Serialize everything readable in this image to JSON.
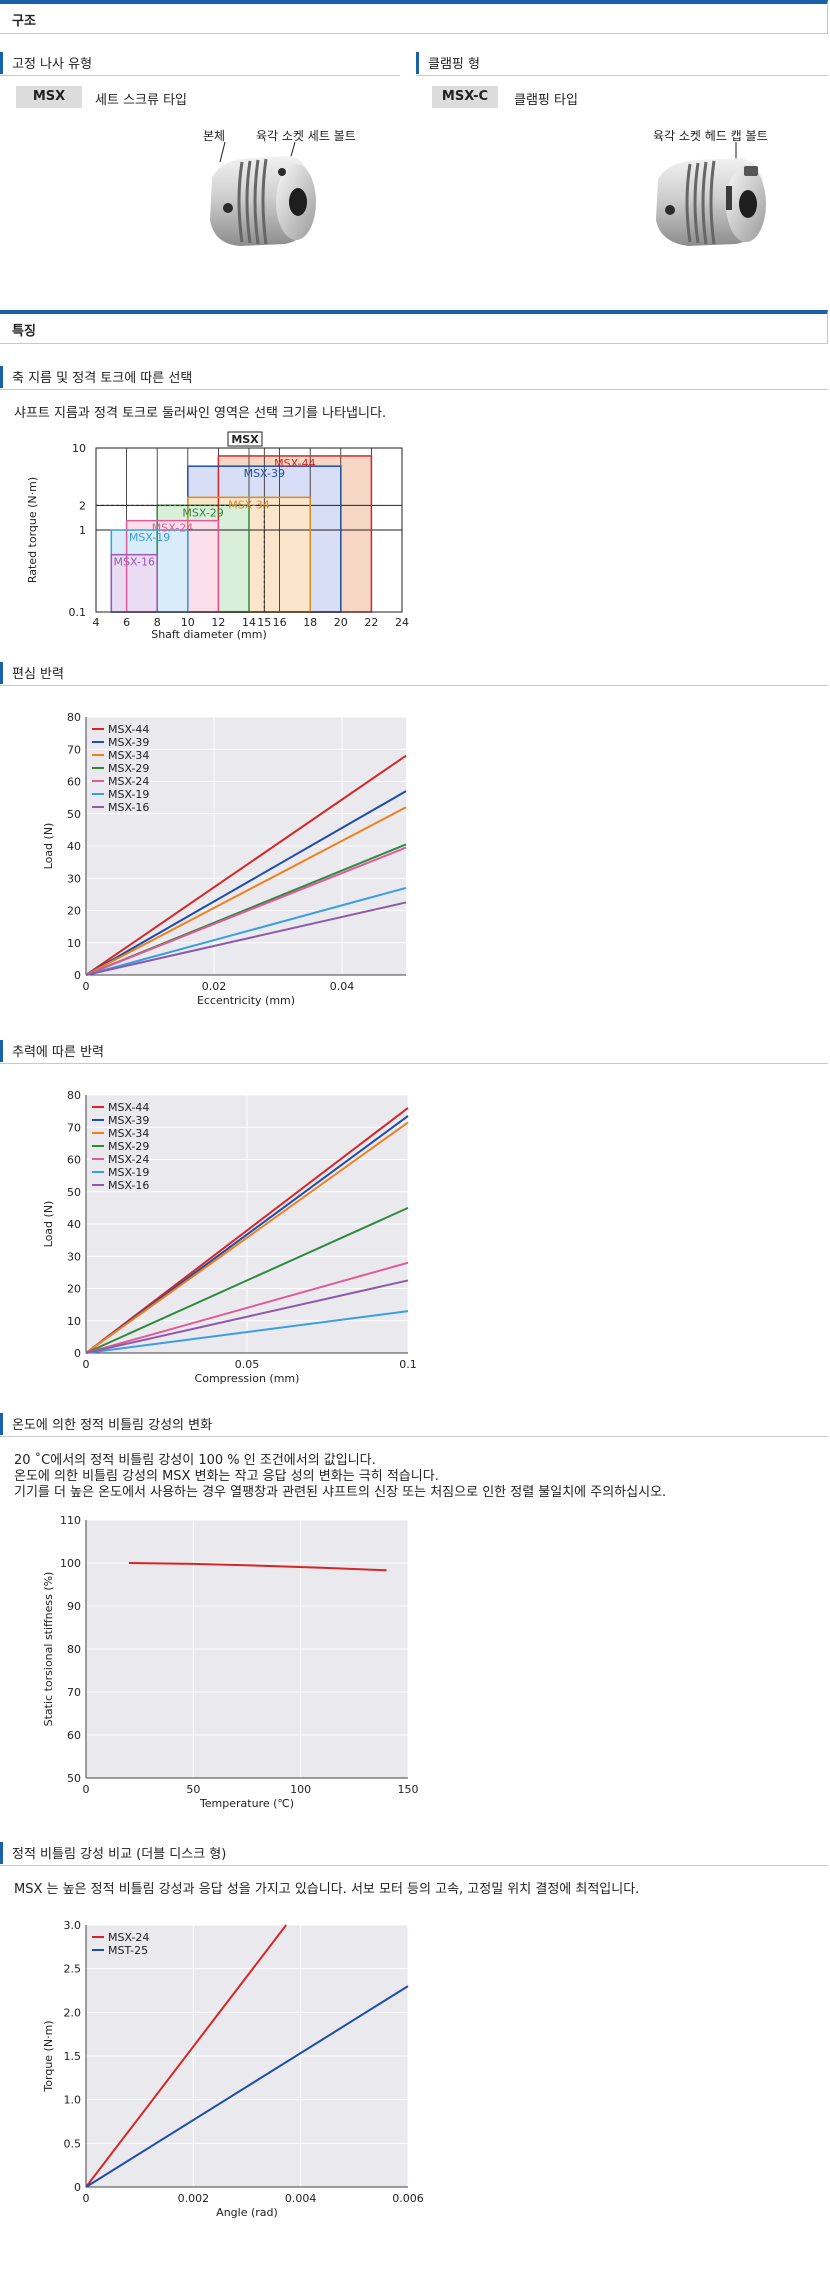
{
  "sections": {
    "structure": "구조",
    "features": "특징"
  },
  "structure": {
    "left": {
      "heading": "고정 나사 유형",
      "model": "MSX",
      "model_desc": "세트 스크류 타입",
      "callouts": [
        "본체",
        "육각 소켓 세트 볼트"
      ]
    },
    "right": {
      "heading": "클램핑 형",
      "model": "MSX-C",
      "model_desc": "클램핑 타입",
      "callouts": [
        "육각 소켓 헤드 캡 볼트"
      ]
    }
  },
  "features": {
    "sel_heading": "축 지름 및 정격 토크에 따른 선택",
    "sel_note": "샤프트 지름과 정격 토크로 둘러싸인 영역은 선택 크기를 나타냅니다.",
    "ecc_heading": "편심 반력",
    "thrust_heading": "추력에 따른 반력",
    "temp_heading": "온도에 의한 정적 비틀림 강성의 변화",
    "temp_notes": [
      "20 ˚C에서의 정적 비틀림 강성이 100 % 인 조건에서의 값입니다.",
      "온도에 의한 비틀림 강성의 MSX 변화는 작고 응답 성의 변화는 극히 적습니다.",
      "기기를 더 높은 온도에서 사용하는 경우 열팽창과 관련된 샤프트의 신장 또는 처짐으로 인한 정렬 불일치에 주의하십시오."
    ],
    "cmp_heading": "정적 비틀림 강성 비교 (더블 디스크 형)",
    "cmp_note": "MSX 는 높은 정적 비틀림 강성과 응답 성을 가지고 있습니다. 서보 모터 등의 고속, 고정밀 위치 결정에 최적입니다."
  },
  "chart_data": [
    {
      "id": "selection",
      "type": "area",
      "title": "MSX",
      "xlabel": "Shaft diameter (mm)",
      "ylabel": "Rated torque (N·m)",
      "yscale": "log",
      "xlim": [
        4,
        24
      ],
      "ylim": [
        0.1,
        10
      ],
      "x_ticks": [
        "4",
        "6",
        "8",
        "10",
        "12",
        "14",
        "15",
        "16",
        "18",
        "20",
        "22",
        "24"
      ],
      "y_ticks": [
        "0.1",
        "1",
        "2",
        "10"
      ],
      "series": [
        {
          "name": "MSX-16",
          "color": "#9b59b6",
          "fill": "#eadcf2",
          "x": [
            5,
            8
          ],
          "torque": 0.5
        },
        {
          "name": "MSX-19",
          "color": "#3b9ee0",
          "fill": "#d8ecfa",
          "x": [
            5,
            10
          ],
          "torque": 1.0
        },
        {
          "name": "MSX-24",
          "color": "#e05a9a",
          "fill": "#fbe0ec",
          "x": [
            6,
            12
          ],
          "torque": 1.3
        },
        {
          "name": "MSX-29",
          "color": "#2e8b3e",
          "fill": "#d9efda",
          "x": [
            8,
            14
          ],
          "torque": 2.0
        },
        {
          "name": "MSX-34",
          "color": "#e08a1e",
          "fill": "#fbe6cb",
          "x": [
            10,
            18
          ],
          "torque": 2.5
        },
        {
          "name": "MSX-39",
          "color": "#1f4ea8",
          "fill": "#d7def5",
          "x": [
            10,
            20
          ],
          "torque": 6.0
        },
        {
          "name": "MSX-44",
          "color": "#d62728",
          "fill": "#f6d6c4",
          "x": [
            12,
            22
          ],
          "torque": 8.0
        }
      ],
      "dashed_refs": [
        {
          "x": 15,
          "y": 2
        }
      ]
    },
    {
      "id": "eccentric",
      "type": "line",
      "xlabel": "Eccentricity (mm)",
      "ylabel": "Load (N)",
      "xlim": [
        0,
        0.05
      ],
      "ylim": [
        0,
        80
      ],
      "x_ticks": [
        "0",
        "0.02",
        "0.04"
      ],
      "y_ticks": [
        "0",
        "10",
        "20",
        "30",
        "40",
        "50",
        "60",
        "70",
        "80"
      ],
      "series": [
        {
          "name": "MSX-44",
          "color": "#d62728",
          "x": [
            0,
            0.05
          ],
          "y": [
            0,
            68
          ]
        },
        {
          "name": "MSX-39",
          "color": "#1f4ea8",
          "x": [
            0,
            0.05
          ],
          "y": [
            0,
            57
          ]
        },
        {
          "name": "MSX-34",
          "color": "#f07f1e",
          "x": [
            0,
            0.05
          ],
          "y": [
            0,
            52
          ]
        },
        {
          "name": "MSX-29",
          "color": "#2e8b3e",
          "x": [
            0,
            0.05
          ],
          "y": [
            0,
            40.5
          ]
        },
        {
          "name": "MSX-24",
          "color": "#e05a9a",
          "x": [
            0,
            0.05
          ],
          "y": [
            0,
            39.5
          ]
        },
        {
          "name": "MSX-19",
          "color": "#3b9ee0",
          "x": [
            0,
            0.05
          ],
          "y": [
            0,
            27
          ]
        },
        {
          "name": "MSX-16",
          "color": "#8e5aa8",
          "x": [
            0,
            0.05
          ],
          "y": [
            0,
            22.5
          ]
        }
      ]
    },
    {
      "id": "compression",
      "type": "line",
      "xlabel": "Compression (mm)",
      "ylabel": "Load (N)",
      "xlim": [
        0,
        0.1
      ],
      "ylim": [
        0,
        80
      ],
      "x_ticks": [
        "0",
        "0.05",
        "0.1"
      ],
      "y_ticks": [
        "0",
        "10",
        "20",
        "30",
        "40",
        "50",
        "60",
        "70",
        "80"
      ],
      "series": [
        {
          "name": "MSX-44",
          "color": "#d62728",
          "x": [
            0,
            0.1
          ],
          "y": [
            0,
            76
          ]
        },
        {
          "name": "MSX-39",
          "color": "#1f4ea8",
          "x": [
            0,
            0.1
          ],
          "y": [
            0,
            73.5
          ]
        },
        {
          "name": "MSX-34",
          "color": "#f07f1e",
          "x": [
            0,
            0.1
          ],
          "y": [
            0,
            71.5
          ]
        },
        {
          "name": "MSX-29",
          "color": "#2e8b3e",
          "x": [
            0,
            0.1
          ],
          "y": [
            0,
            45
          ]
        },
        {
          "name": "MSX-24",
          "color": "#e05a9a",
          "x": [
            0,
            0.1
          ],
          "y": [
            0,
            28
          ]
        },
        {
          "name": "MSX-19",
          "color": "#3b9ee0",
          "x": [
            0,
            0.1
          ],
          "y": [
            0,
            13
          ]
        },
        {
          "name": "MSX-16",
          "color": "#8e5aa8",
          "x": [
            0,
            0.1
          ],
          "y": [
            0,
            22.5
          ]
        }
      ]
    },
    {
      "id": "temperature",
      "type": "line",
      "xlabel": "Temperature (℃)",
      "ylabel": "Static torsional stiffness (%)",
      "xlim": [
        0,
        150
      ],
      "ylim": [
        50,
        110
      ],
      "x_ticks": [
        "0",
        "50",
        "100",
        "150"
      ],
      "y_ticks": [
        "50",
        "60",
        "70",
        "80",
        "90",
        "100",
        "110"
      ],
      "series": [
        {
          "color": "#d62728",
          "x": [
            20,
            50,
            80,
            110,
            140
          ],
          "y": [
            100,
            99.8,
            99.4,
            98.9,
            98.3
          ]
        }
      ]
    },
    {
      "id": "comparison",
      "type": "line",
      "xlabel": "Angle (rad)",
      "ylabel": "Torque (N·m)",
      "xlim": [
        0,
        0.006
      ],
      "ylim": [
        0,
        3.0
      ],
      "x_ticks": [
        "0",
        "0.002",
        "0.004",
        "0.006"
      ],
      "y_ticks": [
        "0",
        "0.5",
        "1.0",
        "1.5",
        "2.0",
        "2.5",
        "3.0"
      ],
      "series": [
        {
          "name": "MSX-24",
          "color": "#d62728",
          "x": [
            0,
            0.00373
          ],
          "y": [
            0,
            3.0
          ]
        },
        {
          "name": "MST-25",
          "color": "#1f4ea8",
          "x": [
            0,
            0.006
          ],
          "y": [
            0,
            2.3
          ]
        }
      ]
    }
  ]
}
